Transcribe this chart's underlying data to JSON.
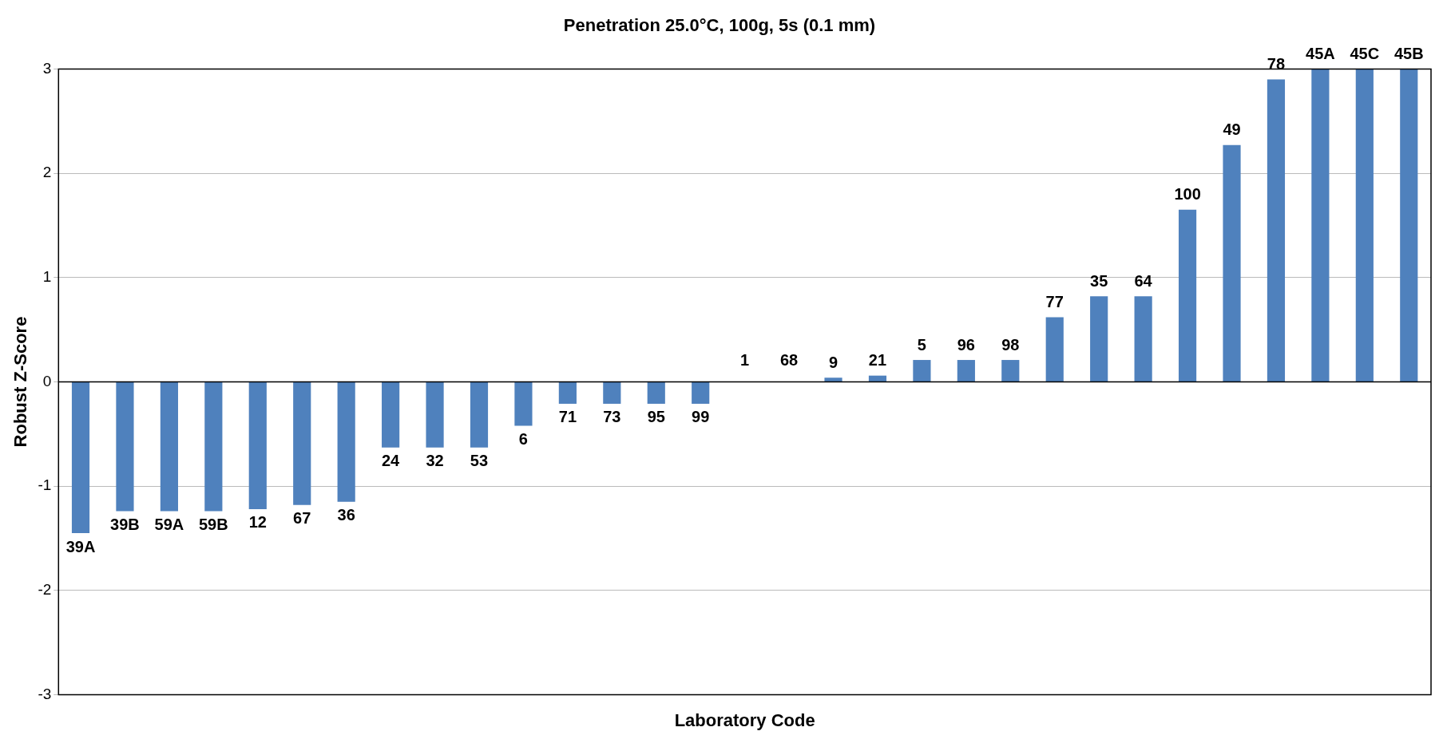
{
  "chart_data": {
    "type": "bar",
    "title": "Penetration 25.0°C, 100g, 5s (0.1 mm)",
    "xlabel": "Laboratory Code",
    "ylabel": "Robust Z-Score",
    "categories": [
      "39A",
      "39B",
      "59A",
      "59B",
      "12",
      "67",
      "36",
      "24",
      "32",
      "53",
      "6",
      "71",
      "73",
      "95",
      "99",
      "1",
      "68",
      "9",
      "21",
      "5",
      "96",
      "98",
      "77",
      "35",
      "64",
      "100",
      "49",
      "78",
      "45A",
      "45C",
      "45B"
    ],
    "values": [
      -1.45,
      -1.24,
      -1.24,
      -1.24,
      -1.22,
      -1.18,
      -1.15,
      -0.63,
      -0.63,
      -0.63,
      -0.42,
      -0.21,
      -0.21,
      -0.21,
      -0.21,
      0,
      0,
      0.04,
      0.06,
      0.21,
      0.21,
      0.21,
      0.62,
      0.82,
      0.82,
      1.65,
      2.27,
      2.9,
      3,
      3,
      3
    ],
    "color": "#4f81bd",
    "ylim": [
      -3,
      3
    ],
    "yticks": [
      -3,
      -2,
      -1,
      0,
      1,
      2,
      3
    ],
    "grid": "y",
    "legend": false,
    "tick_labels": "y"
  }
}
